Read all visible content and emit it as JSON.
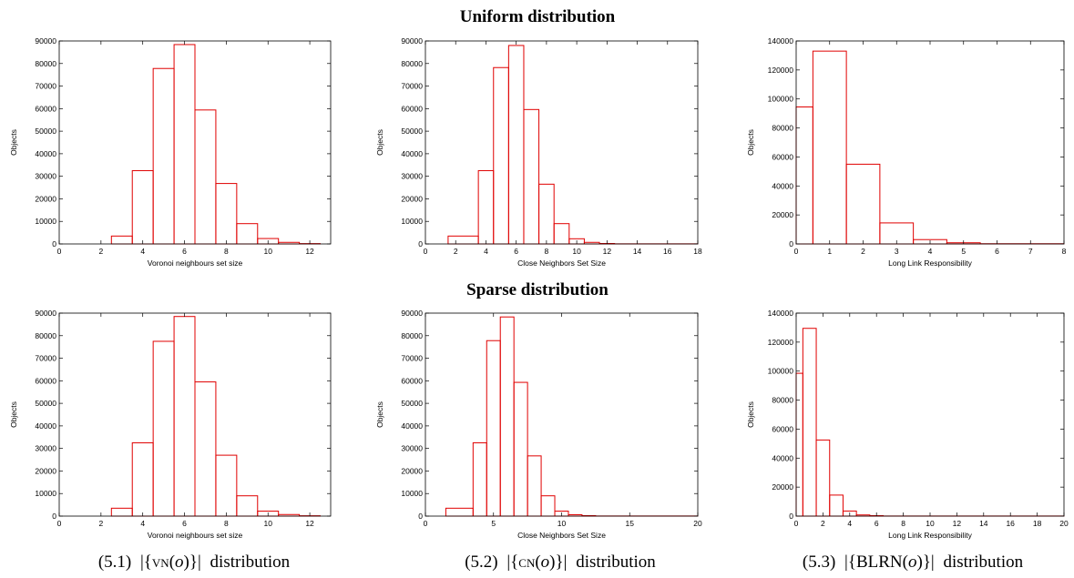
{
  "row_titles": [
    "Uniform distribution",
    "Sparse distribution"
  ],
  "captions": [
    {
      "number": "(5.1)",
      "expr_pre": "|{",
      "func": "VN",
      "arg_open": "(",
      "arg": "o",
      "arg_close": ")",
      "expr_post": "}|",
      "suffix": "distribution"
    },
    {
      "number": "(5.2)",
      "expr_pre": "|{",
      "func": "CN",
      "arg_open": "(",
      "arg": "o",
      "arg_close": ")",
      "expr_post": "}|",
      "suffix": "distribution"
    },
    {
      "number": "(5.3)",
      "expr_pre": "|{",
      "func": "BLRN",
      "arg_open": "(",
      "arg": "o",
      "arg_close": ")",
      "expr_post": "}|",
      "suffix": "distribution"
    }
  ],
  "colors": {
    "bar_stroke": "#e00000",
    "axis": "#000000"
  },
  "chart_data": [
    {
      "type": "bar",
      "title": "",
      "xlabel": "Voronoi neighbours set size",
      "ylabel": "Objects",
      "xlim": [
        0,
        13
      ],
      "ylim": [
        0,
        90000
      ],
      "xticks": [
        0,
        2,
        4,
        6,
        8,
        10,
        12
      ],
      "yticks": [
        0,
        10000,
        20000,
        30000,
        40000,
        50000,
        60000,
        70000,
        80000,
        90000
      ],
      "bins": [
        [
          2.5,
          3.5,
          3500
        ],
        [
          3.5,
          4.5,
          32500
        ],
        [
          4.5,
          5.5,
          77800
        ],
        [
          5.5,
          6.5,
          88400
        ],
        [
          6.5,
          7.5,
          59400
        ],
        [
          7.5,
          8.5,
          26800
        ],
        [
          8.5,
          9.5,
          9000
        ],
        [
          9.5,
          10.5,
          2400
        ],
        [
          10.5,
          11.5,
          700
        ],
        [
          11.5,
          12.5,
          150
        ]
      ]
    },
    {
      "type": "bar",
      "title": "",
      "xlabel": "Close Neighbors Set Size",
      "ylabel": "Objects",
      "xlim": [
        0,
        18
      ],
      "ylim": [
        0,
        90000
      ],
      "xticks": [
        0,
        2,
        4,
        6,
        8,
        10,
        12,
        14,
        16,
        18
      ],
      "yticks": [
        0,
        10000,
        20000,
        30000,
        40000,
        50000,
        60000,
        70000,
        80000,
        90000
      ],
      "bins": [
        [
          1.5,
          3.5,
          3500
        ],
        [
          3.5,
          4.5,
          32500
        ],
        [
          4.5,
          5.5,
          78200
        ],
        [
          5.5,
          6.5,
          88000
        ],
        [
          6.5,
          7.5,
          59600
        ],
        [
          7.5,
          8.5,
          26500
        ],
        [
          8.5,
          9.5,
          9000
        ],
        [
          9.5,
          10.5,
          2300
        ],
        [
          10.5,
          11.5,
          700
        ],
        [
          11.5,
          12.5,
          200
        ],
        [
          12.5,
          18,
          50
        ]
      ]
    },
    {
      "type": "bar",
      "title": "",
      "xlabel": "Long Link Responsibility",
      "ylabel": "Objects",
      "xlim": [
        0,
        8
      ],
      "ylim": [
        0,
        140000
      ],
      "xticks": [
        0,
        1,
        2,
        3,
        4,
        5,
        6,
        7,
        8
      ],
      "yticks": [
        0,
        20000,
        40000,
        60000,
        80000,
        100000,
        120000,
        140000
      ],
      "bins": [
        [
          0,
          0.5,
          94500
        ],
        [
          0.5,
          1.5,
          133000
        ],
        [
          1.5,
          2.5,
          55000
        ],
        [
          2.5,
          3.5,
          14500
        ],
        [
          3.5,
          4.5,
          3000
        ],
        [
          4.5,
          5.5,
          800
        ],
        [
          5.5,
          8,
          150
        ]
      ]
    },
    {
      "type": "bar",
      "title": "",
      "xlabel": "Voronoi neighbours set size",
      "ylabel": "Objects",
      "xlim": [
        0,
        13
      ],
      "ylim": [
        0,
        90000
      ],
      "xticks": [
        0,
        2,
        4,
        6,
        8,
        10,
        12
      ],
      "yticks": [
        0,
        10000,
        20000,
        30000,
        40000,
        50000,
        60000,
        70000,
        80000,
        90000
      ],
      "bins": [
        [
          2.5,
          3.5,
          3500
        ],
        [
          3.5,
          4.5,
          32500
        ],
        [
          4.5,
          5.5,
          77500
        ],
        [
          5.5,
          6.5,
          88500
        ],
        [
          6.5,
          7.5,
          59500
        ],
        [
          7.5,
          8.5,
          27000
        ],
        [
          8.5,
          9.5,
          9000
        ],
        [
          9.5,
          10.5,
          2200
        ],
        [
          10.5,
          11.5,
          700
        ],
        [
          11.5,
          12.5,
          150
        ]
      ]
    },
    {
      "type": "bar",
      "title": "",
      "xlabel": "Close Neighbors Set Size",
      "ylabel": "Objects",
      "xlim": [
        0,
        20
      ],
      "ylim": [
        0,
        90000
      ],
      "xticks": [
        0,
        5,
        10,
        15,
        20
      ],
      "yticks": [
        0,
        10000,
        20000,
        30000,
        40000,
        50000,
        60000,
        70000,
        80000,
        90000
      ],
      "bins": [
        [
          1.5,
          3.5,
          3500
        ],
        [
          3.5,
          4.5,
          32500
        ],
        [
          4.5,
          5.5,
          77800
        ],
        [
          5.5,
          6.5,
          88300
        ],
        [
          6.5,
          7.5,
          59300
        ],
        [
          7.5,
          8.5,
          26700
        ],
        [
          8.5,
          9.5,
          9000
        ],
        [
          9.5,
          10.5,
          2200
        ],
        [
          10.5,
          11.5,
          600
        ],
        [
          11.5,
          12.5,
          200
        ],
        [
          12.5,
          20,
          50
        ]
      ]
    },
    {
      "type": "bar",
      "title": "",
      "xlabel": "Long Link Responsibility",
      "ylabel": "Objects",
      "xlim": [
        0,
        20
      ],
      "ylim": [
        0,
        140000
      ],
      "xticks": [
        0,
        2,
        4,
        6,
        8,
        10,
        12,
        14,
        16,
        18,
        20
      ],
      "yticks": [
        0,
        20000,
        40000,
        60000,
        80000,
        100000,
        120000,
        140000
      ],
      "bins": [
        [
          0,
          0.5,
          98500
        ],
        [
          0.5,
          1.5,
          129500
        ],
        [
          1.5,
          2.5,
          52500
        ],
        [
          2.5,
          3.5,
          14500
        ],
        [
          3.5,
          4.5,
          3500
        ],
        [
          4.5,
          5.5,
          800
        ],
        [
          5.5,
          6.5,
          300
        ],
        [
          6.5,
          20,
          60
        ]
      ]
    }
  ]
}
